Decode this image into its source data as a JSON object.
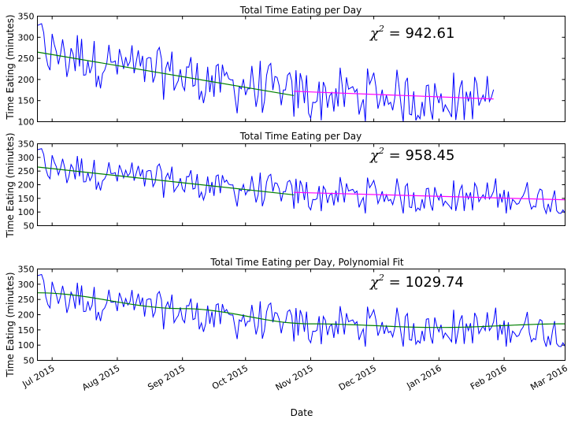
{
  "chart_data": [
    {
      "type": "line",
      "title": "Total Time Eating per Day",
      "ylabel": "Time Eating (minutes)",
      "xlabel": "",
      "ylim": [
        100,
        350
      ],
      "yticks": [
        100,
        150,
        200,
        250,
        300,
        350
      ],
      "xlim": [
        "2015-06-24",
        "2016-03-01"
      ],
      "annotation": "942.61",
      "series": [
        {
          "color": "#0000ff",
          "kind": "daily",
          "x_start": "2015-06-24",
          "x_end": "2016-01-27"
        },
        {
          "color": "#008000",
          "kind": "linear-fit",
          "x": [
            "2015-06-24",
            "2015-10-24"
          ],
          "y": [
            265,
            162
          ]
        },
        {
          "color": "#ff00ff",
          "kind": "linear-fit",
          "x": [
            "2015-10-24",
            "2016-01-27"
          ],
          "y": [
            172,
            154
          ]
        }
      ]
    },
    {
      "type": "line",
      "title": "Total Time Eating per Day",
      "ylabel": "Time Eating (minutes)",
      "xlabel": "",
      "ylim": [
        50,
        350
      ],
      "yticks": [
        50,
        100,
        150,
        200,
        250,
        300,
        350
      ],
      "xlim": [
        "2015-06-24",
        "2016-03-01"
      ],
      "annotation": "958.45",
      "series": [
        {
          "color": "#0000ff",
          "kind": "daily",
          "x_start": "2015-06-24",
          "x_end": "2016-03-01"
        },
        {
          "color": "#008000",
          "kind": "linear-fit",
          "x": [
            "2015-06-24",
            "2015-10-24"
          ],
          "y": [
            265,
            163
          ]
        },
        {
          "color": "#ff00ff",
          "kind": "linear-fit",
          "x": [
            "2015-10-24",
            "2016-03-01"
          ],
          "y": [
            172,
            145
          ]
        }
      ]
    },
    {
      "type": "line",
      "title": "Total Time Eating per Day, Polynomial Fit",
      "ylabel": "Time Eating (minutes)",
      "xlabel": "Date",
      "ylim": [
        50,
        350
      ],
      "yticks": [
        50,
        100,
        150,
        200,
        250,
        300,
        350
      ],
      "xlim": [
        "2015-06-24",
        "2016-03-01"
      ],
      "annotation": "1029.74",
      "series": [
        {
          "color": "#0000ff",
          "kind": "daily",
          "x_start": "2015-06-24",
          "x_end": "2016-03-01"
        },
        {
          "color": "#008000",
          "kind": "polynomial-fit",
          "x": [
            "2015-06-24",
            "2015-09-01",
            "2015-11-01",
            "2016-01-01",
            "2016-03-01"
          ],
          "y": [
            272,
            220,
            170,
            158,
            170
          ]
        }
      ]
    }
  ],
  "x_axis": {
    "tick_labels": [
      "Jul 2015",
      "Aug 2015",
      "Sep 2015",
      "Oct 2015",
      "Nov 2015",
      "Dec 2015",
      "Jan 2016",
      "Feb 2016",
      "Mar 2016"
    ],
    "tick_dates": [
      "2015-07-01",
      "2015-08-01",
      "2015-09-01",
      "2015-10-01",
      "2015-11-01",
      "2015-12-01",
      "2016-01-01",
      "2016-02-01",
      "2016-03-01"
    ],
    "label": "Date"
  }
}
